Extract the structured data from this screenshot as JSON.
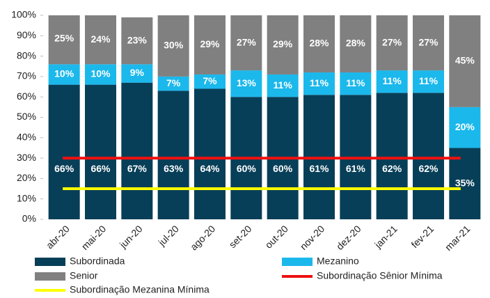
{
  "chart_data": {
    "type": "stacked_bar",
    "categories": [
      "abr-20",
      "mai-20",
      "jun-20",
      "jul-20",
      "ago-20",
      "set-20",
      "out-20",
      "nov-20",
      "dez-20",
      "jan-21",
      "fev-21",
      "mar-21"
    ],
    "series": [
      {
        "name": "Subordinada",
        "color": "#083f58",
        "values": [
          66,
          66,
          67,
          63,
          64,
          60,
          60,
          61,
          61,
          62,
          62,
          35
        ],
        "value_labels": [
          "66%",
          "66%",
          "67%",
          "63%",
          "64%",
          "60%",
          "60%",
          "61%",
          "61%",
          "62%",
          "62%",
          "35%"
        ]
      },
      {
        "name": "Mezanino",
        "color": "#1bb8ec",
        "values": [
          10,
          10,
          9,
          7,
          7,
          13,
          11,
          11,
          11,
          11,
          11,
          20
        ],
        "value_labels": [
          "10%",
          "10%",
          "9%",
          "7%",
          "7%",
          "13%",
          "11%",
          "11%",
          "11%",
          "11%",
          "11%",
          "20%"
        ]
      },
      {
        "name": "Senior",
        "color": "#808080",
        "values": [
          25,
          24,
          23,
          30,
          29,
          27,
          29,
          28,
          28,
          27,
          27,
          45
        ],
        "value_labels": [
          "25%",
          "24%",
          "23%",
          "30%",
          "29%",
          "27%",
          "29%",
          "28%",
          "28%",
          "27%",
          "27%",
          "45%"
        ]
      }
    ],
    "lines": [
      {
        "name": "Subordinação Sênior Mínima",
        "color": "#ee1111",
        "value": 30
      },
      {
        "name": "Subordinação Mezanina Mínima",
        "color": "#ffff00",
        "value": 15
      }
    ],
    "ylim": [
      0,
      100
    ],
    "yticks": [
      {
        "value": 0,
        "label": "0%"
      },
      {
        "value": 10,
        "label": "10%"
      },
      {
        "value": 20,
        "label": "20%"
      },
      {
        "value": 30,
        "label": "30%"
      },
      {
        "value": 40,
        "label": "40%"
      },
      {
        "value": 50,
        "label": "50%"
      },
      {
        "value": 60,
        "label": "60%"
      },
      {
        "value": 70,
        "label": "70%"
      },
      {
        "value": 80,
        "label": "80%"
      },
      {
        "value": 90,
        "label": "90%"
      },
      {
        "value": 100,
        "label": "100%"
      }
    ]
  }
}
